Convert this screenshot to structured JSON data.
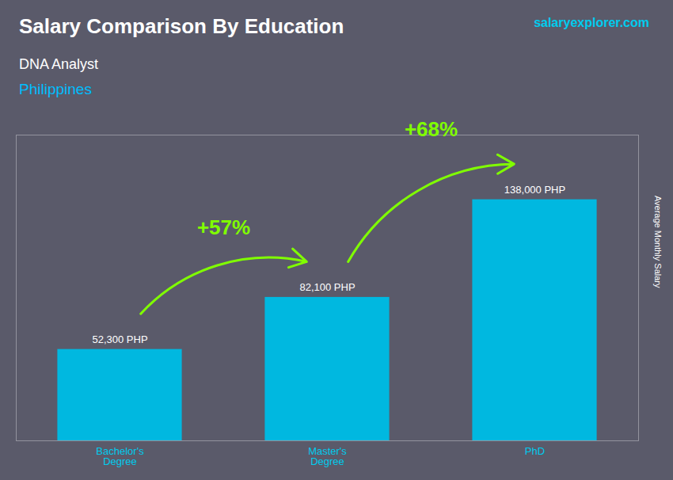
{
  "chart_data": {
    "type": "bar",
    "title": "Salary Comparison By Education",
    "subtitle": "DNA Analyst",
    "annotations": [
      "Philippines",
      "salaryexplorer.com"
    ],
    "ylabel": "Average Monthly Salary",
    "categories": [
      "Bachelor's\nDegree",
      "Master's\nDegree",
      "PhD"
    ],
    "values": [
      52300,
      82100,
      138000
    ],
    "value_labels": [
      "52,300 PHP",
      "82,100 PHP",
      "138,000 PHP"
    ],
    "data_labels": true,
    "changes": [
      "+57%",
      "+68%"
    ],
    "color": "#00B8E0",
    "ylim": [
      0,
      175000
    ],
    "tick_labels": "x",
    "grid": false
  }
}
